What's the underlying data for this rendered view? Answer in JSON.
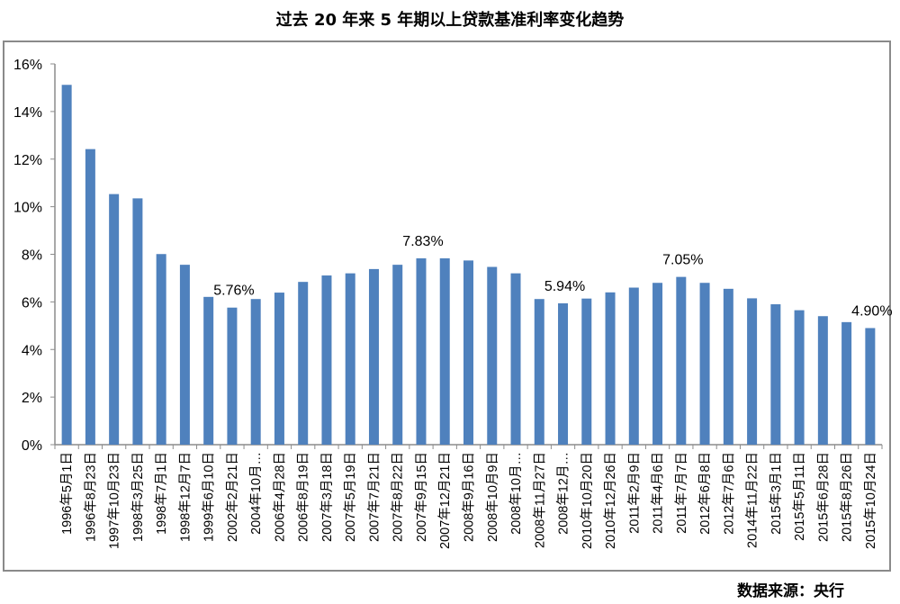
{
  "title": "过去 20 年来 5 年期以上贷款基准利率变化趋势",
  "source": "数据来源：央行",
  "colors": {
    "bar": "#4f81bd",
    "axis": "#8c8c8c",
    "frame": "#8a8a8a",
    "text": "#000000"
  },
  "chart_data": {
    "type": "bar",
    "title": "过去 20 年来 5 年期以上贷款基准利率变化趋势",
    "xlabel": "",
    "ylabel": "",
    "ylim": [
      0,
      16
    ],
    "yticks": [
      "0%",
      "2%",
      "4%",
      "6%",
      "8%",
      "10%",
      "12%",
      "14%",
      "16%"
    ],
    "grid": false,
    "legend": null,
    "categories": [
      "1996年5月1日",
      "1996年8月23日",
      "1997年10月23日",
      "1998年3月25日",
      "1998年7月1日",
      "1998年12月7日",
      "1999年6月10日",
      "2002年2月21日",
      "2004年10月…",
      "2006年4月28日",
      "2006年8月19日",
      "2007年3月18日",
      "2007年5月19日",
      "2007年7月21日",
      "2007年8月22日",
      "2007年9月15日",
      "2007年12月21日",
      "2008年9月16日",
      "2008年10月9日",
      "2008年10月…",
      "2008年11月27日",
      "2008年12月…",
      "2010年10月20日",
      "2010年12月26日",
      "2011年2月9日",
      "2011年4月6日",
      "2011年7月7日",
      "2012年6月8日",
      "2012年7月6日",
      "2014年11月22日",
      "2015年3月1日",
      "2015年5月11日",
      "2015年6月28日",
      "2015年8月26日",
      "2015年10月24日"
    ],
    "values": [
      15.12,
      12.42,
      10.53,
      10.35,
      8.01,
      7.56,
      6.21,
      5.76,
      6.12,
      6.39,
      6.84,
      7.11,
      7.2,
      7.38,
      7.56,
      7.83,
      7.83,
      7.74,
      7.47,
      7.2,
      6.12,
      5.94,
      6.14,
      6.4,
      6.6,
      6.8,
      7.05,
      6.8,
      6.55,
      6.15,
      5.9,
      5.65,
      5.4,
      5.15,
      4.9
    ],
    "annotations": [
      {
        "index": 7,
        "text": "5.76%"
      },
      {
        "index": 15,
        "text": "7.83%"
      },
      {
        "index": 21,
        "text": "5.94%"
      },
      {
        "index": 26,
        "text": "7.05%"
      },
      {
        "index": 34,
        "text": "4.90%"
      }
    ],
    "unit": "%"
  }
}
